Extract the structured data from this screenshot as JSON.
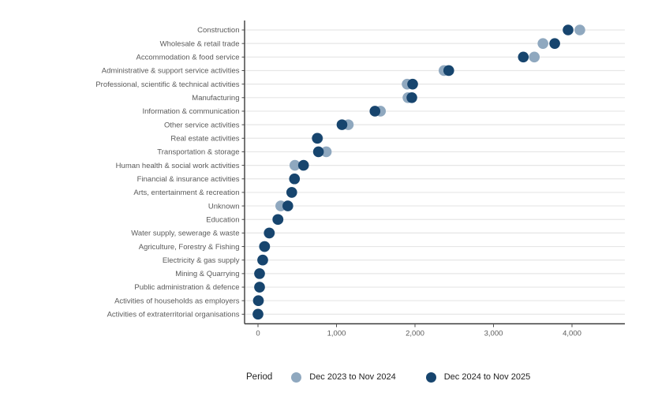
{
  "chart_data": {
    "type": "scatter",
    "variant": "cleveland-dot-plot",
    "title": "",
    "xlabel": "",
    "ylabel": "",
    "orientation": "horizontal",
    "grid": "horizontal-only",
    "legend_position": "bottom",
    "legend_title": "Period",
    "xlim": [
      -170,
      4670
    ],
    "x_ticks": [
      0,
      1000,
      2000,
      3000,
      4000
    ],
    "x_tick_labels": [
      "0",
      "1,000",
      "2,000",
      "3,000",
      "4,000"
    ],
    "categories": [
      "Construction",
      "Wholesale & retail trade",
      "Accommodation & food service",
      "Administrative & support service activities",
      "Professional, scientific & technical activities",
      "Manufacturing",
      "Information & communication",
      "Other service activities",
      "Real estate activities",
      "Transportation & storage",
      "Human health & social work activities",
      "Financial & insurance activities",
      "Arts, entertainment & recreation",
      "Unknown",
      "Education",
      "Water supply, sewerage & waste",
      "Agriculture, Forestry & Fishing",
      "Electricity & gas supply",
      "Mining & Quarrying",
      "Public administration & defence",
      "Activities of households as employers",
      "Activities of extraterritorial organisations"
    ],
    "series": [
      {
        "name": "Dec 2023 to Nov 2024",
        "color": "#8FA8BF",
        "values": [
          4100,
          3630,
          3520,
          2370,
          1900,
          1910,
          1560,
          1150,
          760,
          870,
          470,
          465,
          430,
          290,
          250,
          140,
          80,
          60,
          20,
          20,
          5,
          0
        ]
      },
      {
        "name": "Dec 2024 to Nov 2025",
        "color": "#17456E",
        "values": [
          3950,
          3780,
          3380,
          2430,
          1970,
          1960,
          1490,
          1070,
          755,
          770,
          580,
          465,
          430,
          380,
          255,
          145,
          85,
          60,
          20,
          20,
          5,
          0
        ]
      }
    ]
  },
  "colors": {
    "background": "#ffffff",
    "axis_line": "#3b3b3b",
    "tick_mark": "#4d4d4d",
    "tick_label": "#5a5a5a",
    "gridline": "#e6e6e6",
    "legend_text": "#222222"
  }
}
